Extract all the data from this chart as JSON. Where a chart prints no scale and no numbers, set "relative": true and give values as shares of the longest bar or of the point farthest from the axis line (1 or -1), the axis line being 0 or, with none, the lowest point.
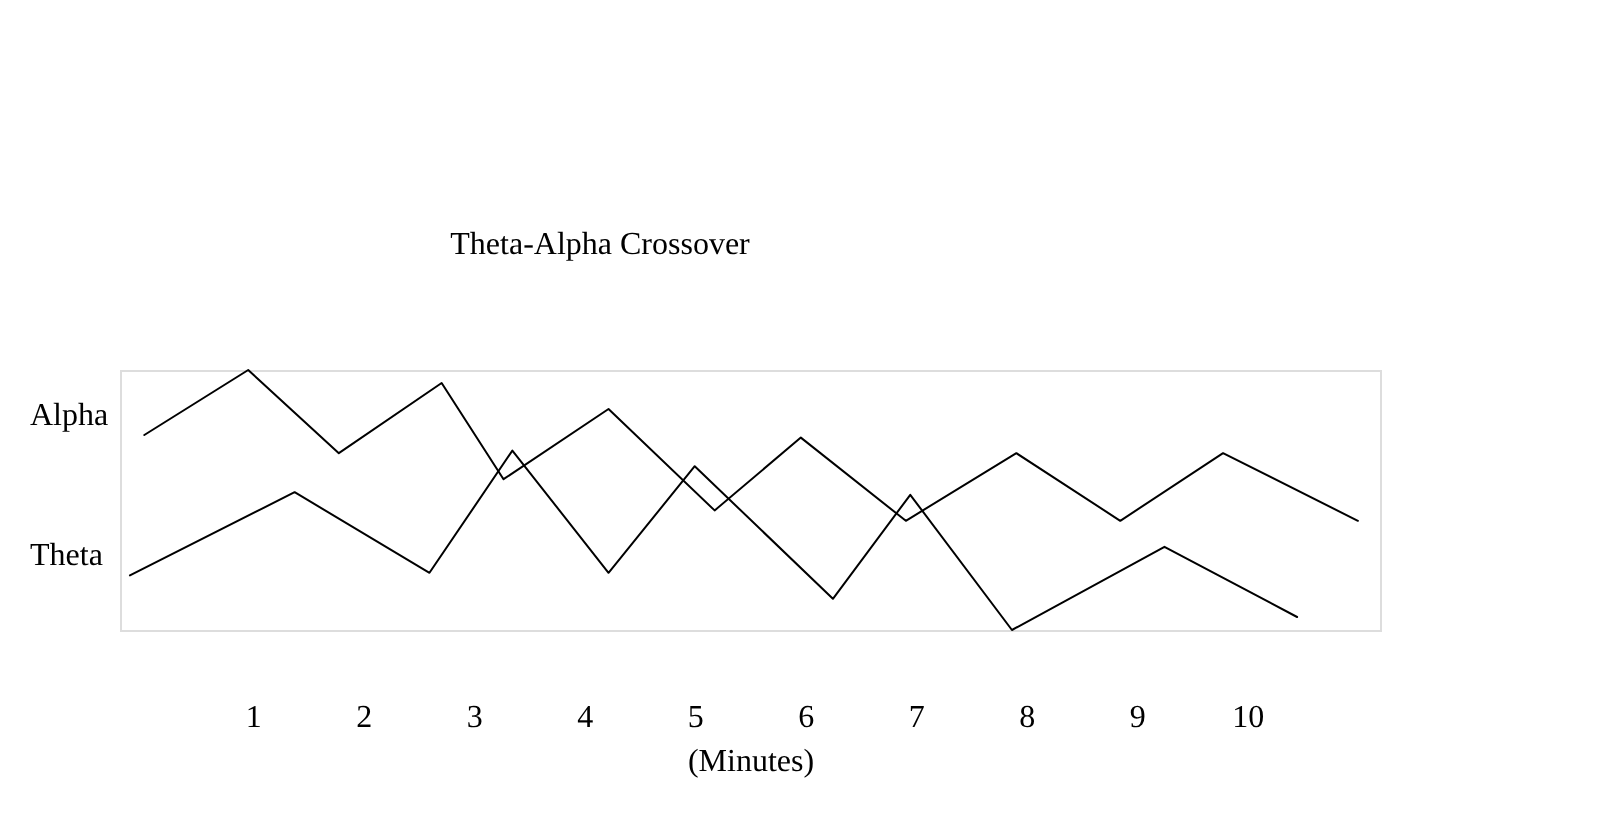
{
  "chart_data": {
    "type": "line",
    "title": "Theta-Alpha Crossover",
    "xlabel": "(Minutes)",
    "relative": true,
    "xlim": [
      -0.2,
      11.2
    ],
    "xticks": [
      1,
      2,
      3,
      4,
      5,
      6,
      7,
      8,
      9,
      10
    ],
    "grid": false,
    "marker": "none",
    "line_style": "solid",
    "series": [
      {
        "name": "Alpha",
        "color": "#000000",
        "x": [
          0.02,
          0.96,
          1.78,
          2.71,
          3.27,
          4.22,
          5.18,
          5.96,
          6.91,
          7.91,
          8.85,
          9.78,
          11.0
        ],
        "values": [
          0.75,
          1.0,
          0.68,
          0.95,
          0.58,
          0.85,
          0.46,
          0.74,
          0.42,
          0.68,
          0.42,
          0.68,
          0.42
        ]
      },
      {
        "name": "Theta",
        "color": "#000000",
        "x": [
          -0.11,
          1.38,
          2.6,
          3.35,
          4.22,
          5.0,
          6.25,
          6.95,
          7.87,
          9.25,
          10.45
        ],
        "values": [
          0.21,
          0.53,
          0.22,
          0.69,
          0.22,
          0.63,
          0.12,
          0.52,
          0.0,
          0.32,
          0.05
        ]
      }
    ]
  }
}
